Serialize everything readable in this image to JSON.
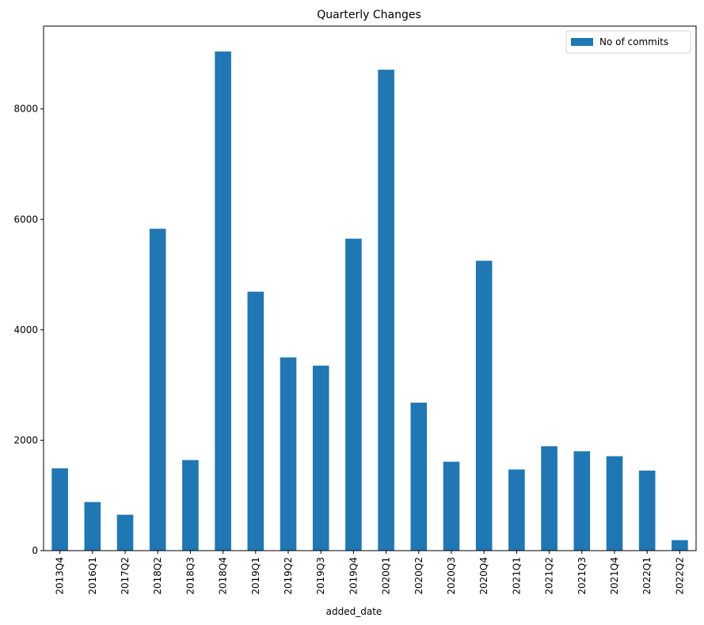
{
  "chart_data": {
    "type": "bar",
    "title": "Quarterly Changes",
    "xlabel": "added_date",
    "ylabel": "",
    "ylim": [
      0,
      9500
    ],
    "yticks": [
      0,
      2000,
      4000,
      6000,
      8000
    ],
    "grid": false,
    "legend_position": "top-right",
    "categories": [
      "2013Q4",
      "2016Q1",
      "2017Q2",
      "2018Q2",
      "2018Q3",
      "2018Q4",
      "2019Q1",
      "2019Q2",
      "2019Q3",
      "2019Q4",
      "2020Q1",
      "2020Q2",
      "2020Q3",
      "2020Q4",
      "2021Q1",
      "2021Q2",
      "2021Q3",
      "2021Q4",
      "2022Q1",
      "2022Q2"
    ],
    "series": [
      {
        "name": "No of commits",
        "color": "#1f77b4",
        "values": [
          1490,
          880,
          650,
          5830,
          1640,
          9040,
          4690,
          3500,
          3350,
          5650,
          8710,
          2680,
          1610,
          5250,
          1470,
          1890,
          1800,
          1710,
          1450,
          190
        ]
      }
    ]
  }
}
